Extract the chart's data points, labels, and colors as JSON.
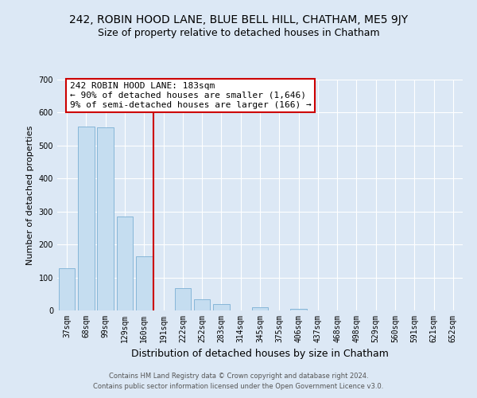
{
  "title": "242, ROBIN HOOD LANE, BLUE BELL HILL, CHATHAM, ME5 9JY",
  "subtitle": "Size of property relative to detached houses in Chatham",
  "xlabel": "Distribution of detached houses by size in Chatham",
  "ylabel": "Number of detached properties",
  "bar_labels": [
    "37sqm",
    "68sqm",
    "99sqm",
    "129sqm",
    "160sqm",
    "191sqm",
    "222sqm",
    "252sqm",
    "283sqm",
    "314sqm",
    "345sqm",
    "375sqm",
    "406sqm",
    "437sqm",
    "468sqm",
    "498sqm",
    "529sqm",
    "560sqm",
    "591sqm",
    "621sqm",
    "652sqm"
  ],
  "bar_values": [
    128,
    558,
    556,
    285,
    165,
    0,
    68,
    33,
    19,
    0,
    10,
    0,
    5,
    0,
    0,
    0,
    0,
    0,
    0,
    0,
    0
  ],
  "bar_color": "#c5ddf0",
  "bar_edge_color": "#7aafd4",
  "vline_x_index": 5,
  "vline_color": "#cc0000",
  "annotation_text": "242 ROBIN HOOD LANE: 183sqm\n← 90% of detached houses are smaller (1,646)\n9% of semi-detached houses are larger (166) →",
  "annotation_box_color": "#ffffff",
  "annotation_box_edge_color": "#cc0000",
  "ylim": [
    0,
    700
  ],
  "yticks": [
    0,
    100,
    200,
    300,
    400,
    500,
    600,
    700
  ],
  "footer_line1": "Contains HM Land Registry data © Crown copyright and database right 2024.",
  "footer_line2": "Contains public sector information licensed under the Open Government Licence v3.0.",
  "background_color": "#dce8f5",
  "plot_background": "#dce8f5",
  "grid_color": "#ffffff",
  "title_fontsize": 10,
  "subtitle_fontsize": 9,
  "ylabel_fontsize": 8,
  "xlabel_fontsize": 9,
  "tick_fontsize": 7,
  "footer_fontsize": 6,
  "annotation_fontsize": 8
}
